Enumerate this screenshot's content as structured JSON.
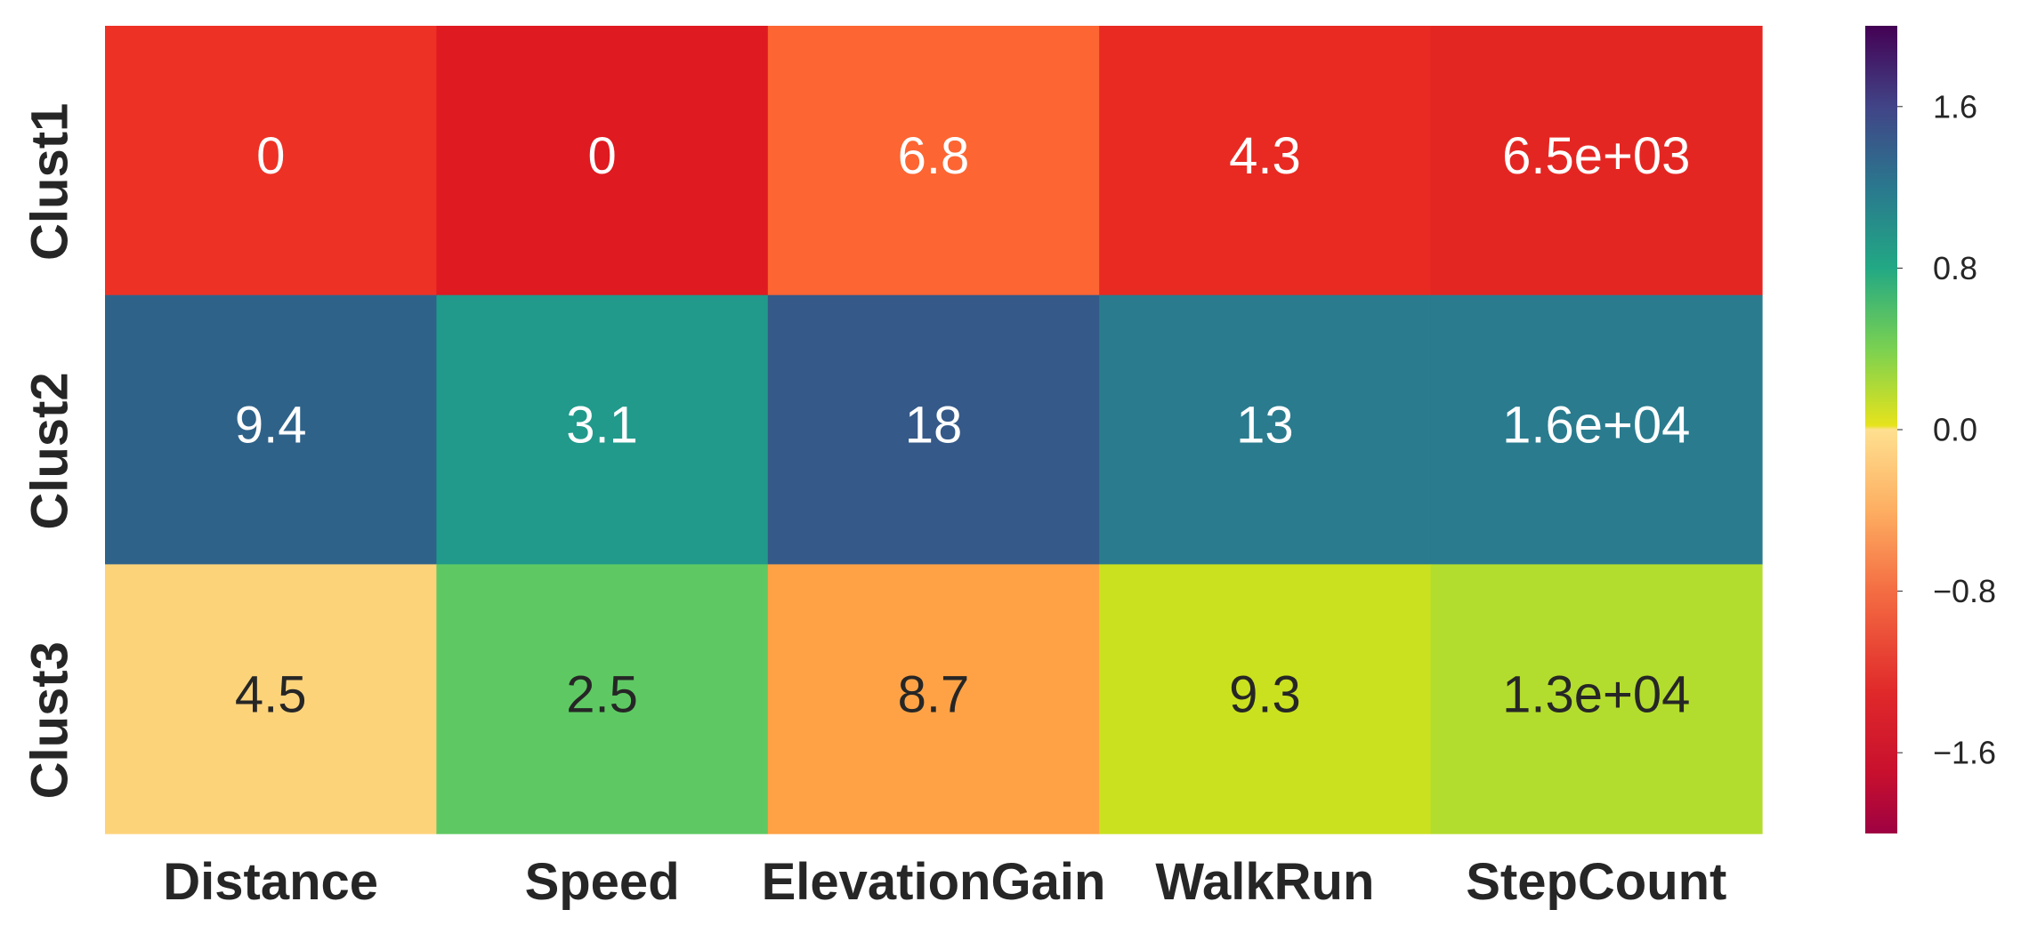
{
  "chart_data": {
    "type": "heatmap",
    "title": "",
    "xlabel": "",
    "ylabel": "",
    "x_categories": [
      "Distance",
      "Speed",
      "ElevationGain",
      "WalkRun",
      "StepCount"
    ],
    "y_categories": [
      "Clust1",
      "Clust2",
      "Clust3"
    ],
    "annotations": [
      [
        "0",
        "0",
        "6.8",
        "4.3",
        "6.5e+03"
      ],
      [
        "9.4",
        "3.1",
        "18",
        "13",
        "1.6e+04"
      ],
      [
        "4.5",
        "2.5",
        "8.7",
        "9.3",
        "1.3e+04"
      ]
    ],
    "color_values": [
      [
        -1.2,
        -1.45,
        -0.72,
        -1.3,
        -1.3
      ],
      [
        1.15,
        0.85,
        1.3,
        1.0,
        1.0
      ],
      [
        -0.05,
        0.4,
        -0.4,
        0.1,
        0.15
      ]
    ],
    "cell_colors": [
      [
        "#ee3125",
        "#df1a20",
        "#fd6532",
        "#e82a22",
        "#e42622"
      ],
      [
        "#2f6289",
        "#21998b",
        "#355988",
        "#2a7b8e",
        "#2a7b8e"
      ],
      [
        "#fdd37a",
        "#5ec962",
        "#fea245",
        "#cae11f",
        "#b3dd2e"
      ]
    ],
    "annotation_colors": [
      [
        "#ffffff",
        "#ffffff",
        "#ffffff",
        "#ffffff",
        "#ffffff"
      ],
      [
        "#ffffff",
        "#ffffff",
        "#ffffff",
        "#ffffff",
        "#ffffff"
      ],
      [
        "#262626",
        "#262626",
        "#262626",
        "#262626",
        "#262626"
      ]
    ],
    "colorbar": {
      "vmin": -2.0,
      "vmax": 2.0,
      "ticks": [
        -1.6,
        -0.8,
        0.0,
        0.8,
        1.6
      ],
      "tick_labels": [
        "−1.6",
        "−0.8",
        "0.0",
        "0.8",
        "1.6"
      ],
      "colormap": "custom (Spectral negative half + viridis positive half)"
    }
  }
}
